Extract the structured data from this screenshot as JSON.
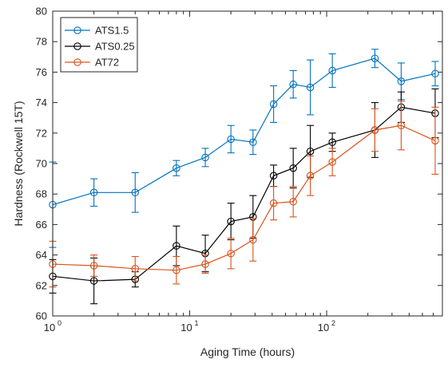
{
  "chart_data": {
    "type": "line",
    "xlabel": "Aging Time (hours)",
    "ylabel": "Hardness (Rockwell 15T)",
    "xscale": "log",
    "xlim": [
      1,
      700
    ],
    "ylim": [
      60,
      80
    ],
    "yticks": [
      60,
      62,
      64,
      66,
      68,
      70,
      72,
      74,
      76,
      78,
      80
    ],
    "xticks": [
      {
        "value": 1,
        "base": "10",
        "exp": "0"
      },
      {
        "value": 10,
        "base": "10",
        "exp": "1"
      },
      {
        "value": 100,
        "base": "10",
        "exp": "2"
      }
    ],
    "grid": false,
    "legend_position": "top-left",
    "series": [
      {
        "name": "ATS1.5",
        "color": "#0072BD",
        "x": [
          1,
          2,
          4,
          8,
          13,
          20,
          29,
          41,
          57,
          76,
          110,
          225,
          350,
          620
        ],
        "y": [
          67.3,
          68.1,
          68.1,
          69.7,
          70.4,
          71.6,
          71.4,
          73.9,
          75.2,
          75.0,
          76.1,
          76.9,
          75.4,
          75.9
        ],
        "err": [
          2.8,
          0.9,
          1.3,
          0.5,
          0.6,
          0.9,
          0.8,
          1.2,
          0.9,
          1.8,
          1.1,
          0.6,
          1.2,
          0.8
        ]
      },
      {
        "name": "ATS0.25",
        "color": "#000000",
        "x": [
          1,
          2,
          4,
          8,
          13,
          20,
          29,
          41,
          57,
          76,
          110,
          225,
          350,
          620
        ],
        "y": [
          62.6,
          62.3,
          62.4,
          64.6,
          64.1,
          66.2,
          66.5,
          69.2,
          69.7,
          70.8,
          71.4,
          72.2,
          73.7,
          73.3
        ],
        "err": [
          1.1,
          1.5,
          0.5,
          1.3,
          1.2,
          1.2,
          1.4,
          0.7,
          1.3,
          1.7,
          0.6,
          1.8,
          1.0,
          1.6
        ]
      },
      {
        "name": "AT72",
        "color": "#D95319",
        "x": [
          1,
          2,
          4,
          8,
          13,
          20,
          29,
          41,
          57,
          76,
          110,
          225,
          350,
          620
        ],
        "y": [
          63.4,
          63.3,
          63.1,
          63.0,
          63.4,
          64.1,
          65.0,
          67.4,
          67.5,
          69.2,
          70.1,
          72.2,
          72.5,
          71.5
        ],
        "err": [
          1.5,
          0.7,
          0.8,
          0.9,
          0.6,
          1.0,
          1.4,
          1.1,
          1.0,
          1.3,
          0.9,
          1.4,
          1.6,
          2.2
        ]
      }
    ]
  }
}
